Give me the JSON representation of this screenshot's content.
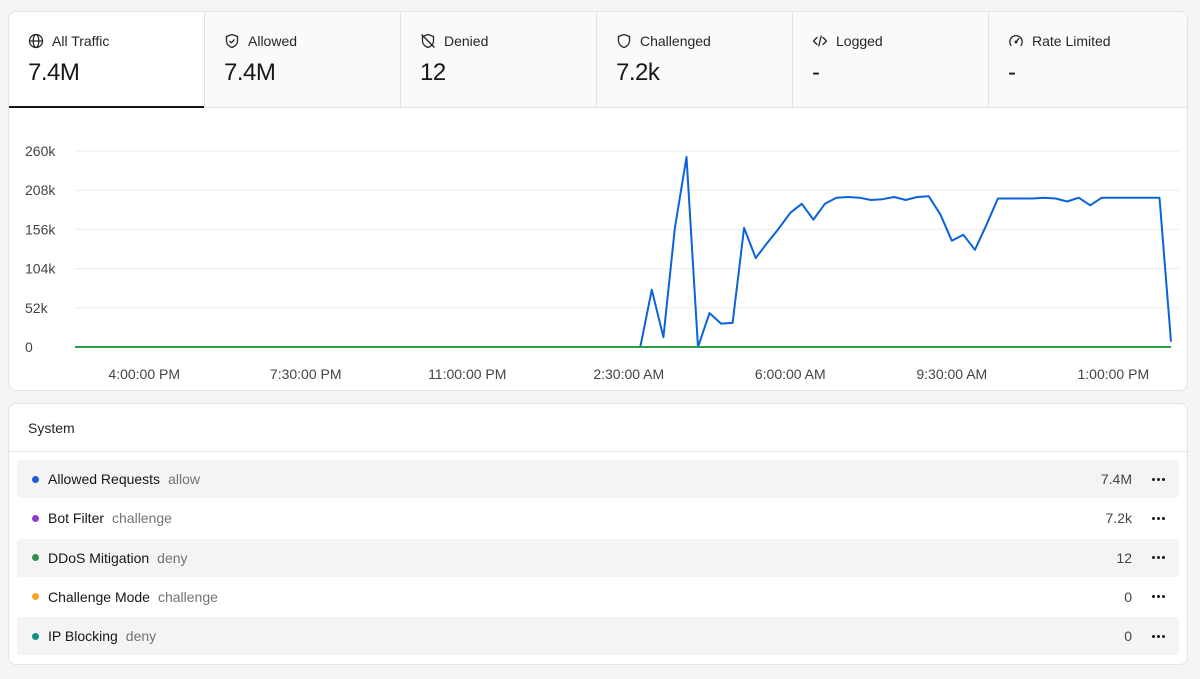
{
  "tabs": [
    {
      "label": "All Traffic",
      "value": "7.4M",
      "icon": "globe-icon"
    },
    {
      "label": "Allowed",
      "value": "7.4M",
      "icon": "shield-check-icon"
    },
    {
      "label": "Denied",
      "value": "12",
      "icon": "shield-off-icon"
    },
    {
      "label": "Challenged",
      "value": "7.2k",
      "icon": "shield-icon"
    },
    {
      "label": "Logged",
      "value": "-",
      "icon": "code-icon"
    },
    {
      "label": "Rate Limited",
      "value": "-",
      "icon": "gauge-icon"
    }
  ],
  "active_tab": "All Traffic",
  "chart_data": {
    "type": "line",
    "title": "",
    "xlabel": "",
    "ylabel": "",
    "ylim": [
      0,
      260000
    ],
    "y_ticks": [
      "0",
      "52k",
      "104k",
      "156k",
      "208k",
      "260k"
    ],
    "y_tick_values": [
      0,
      52000,
      104000,
      156000,
      208000,
      260000
    ],
    "x_ticks": [
      "4:00:00 PM",
      "7:30:00 PM",
      "11:00:00 PM",
      "2:30:00 AM",
      "6:00:00 AM",
      "9:30:00 AM",
      "1:00:00 PM"
    ],
    "x_tick_index": [
      6,
      20,
      34,
      48,
      62,
      76,
      90
    ],
    "grid": true,
    "series": [
      {
        "color": "#0a63dc",
        "values": [
          0,
          0,
          0,
          0,
          0,
          0,
          0,
          0,
          0,
          0,
          0,
          0,
          0,
          0,
          0,
          0,
          0,
          0,
          0,
          0,
          0,
          0,
          0,
          0,
          0,
          0,
          0,
          0,
          0,
          0,
          0,
          0,
          0,
          0,
          0,
          0,
          0,
          0,
          0,
          0,
          0,
          0,
          0,
          0,
          0,
          0,
          0,
          0,
          0,
          0,
          76000,
          13000,
          158000,
          252000,
          0,
          45000,
          31000,
          32000,
          158000,
          118000,
          138000,
          157000,
          178000,
          190000,
          169000,
          190000,
          198000,
          199000,
          198000,
          195000,
          196000,
          199000,
          195000,
          199000,
          200000,
          176000,
          141000,
          149000,
          129000,
          162000,
          197000,
          197000,
          197000,
          197000,
          198000,
          197000,
          193000,
          198000,
          188000,
          198000,
          198000,
          198000,
          198000,
          198000,
          198000,
          7000
        ]
      },
      {
        "color": "#2f9e44",
        "values": [
          0,
          0,
          0,
          0,
          0,
          0,
          0,
          0,
          0,
          0,
          0,
          0,
          0,
          0,
          0,
          0,
          0,
          0,
          0,
          0,
          0,
          0,
          0,
          0,
          0,
          0,
          0,
          0,
          0,
          0,
          0,
          0,
          0,
          0,
          0,
          0,
          0,
          0,
          0,
          0,
          0,
          0,
          0,
          0,
          0,
          0,
          0,
          0,
          0,
          0,
          0,
          0,
          0,
          0,
          0,
          0,
          0,
          0,
          0,
          0,
          0,
          0,
          0,
          0,
          0,
          0,
          0,
          0,
          0,
          0,
          0,
          0,
          0,
          0,
          0,
          0,
          0,
          0,
          0,
          0,
          0,
          0,
          0,
          0,
          0,
          0,
          0,
          0,
          0,
          0,
          0,
          0,
          0,
          0,
          0,
          0
        ]
      }
    ]
  },
  "system": {
    "title": "System",
    "rows": [
      {
        "name": "Allowed Requests",
        "action": "allow",
        "count": "7.4M",
        "color": "#1a5fd6"
      },
      {
        "name": "Bot Filter",
        "action": "challenge",
        "count": "7.2k",
        "color": "#8a3fd1"
      },
      {
        "name": "DDoS Mitigation",
        "action": "deny",
        "count": "12",
        "color": "#2f8f4e"
      },
      {
        "name": "Challenge Mode",
        "action": "challenge",
        "count": "0",
        "color": "#f5a524"
      },
      {
        "name": "IP Blocking",
        "action": "deny",
        "count": "0",
        "color": "#13917f"
      }
    ]
  }
}
